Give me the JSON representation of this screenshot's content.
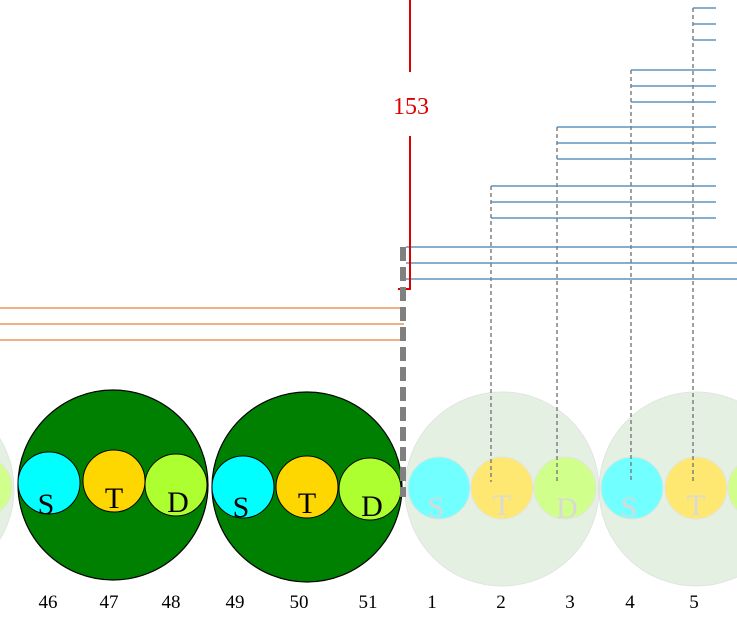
{
  "marker": {
    "label": "153",
    "color": "#dd0000"
  },
  "colors": {
    "dark_green": "#008000",
    "faded_green": "#cfe7cc",
    "orange_line": "#e8803a",
    "blue_line": "#3a7fb4",
    "gray_dash": "#808080",
    "cyan": "#00ffff",
    "gold": "#ffd700",
    "lime": "#adff2f"
  },
  "sub_labels": [
    "S",
    "T",
    "D"
  ],
  "groups": [
    {
      "state": "faded"
    },
    {
      "state": "active"
    },
    {
      "state": "active"
    },
    {
      "state": "faded"
    },
    {
      "state": "faded"
    }
  ],
  "positions": [
    "46",
    "47",
    "48",
    "49",
    "50",
    "51",
    "1",
    "2",
    "3",
    "4",
    "5"
  ]
}
